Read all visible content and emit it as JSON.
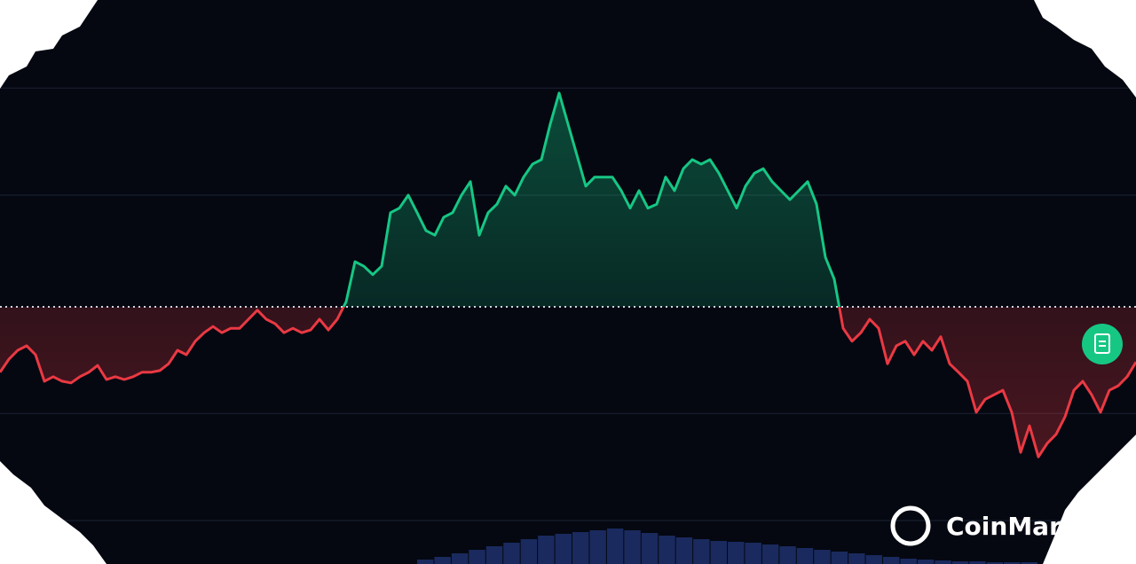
{
  "chart_data": {
    "type": "baseline-line",
    "baseline": 45.6,
    "ylim": [
      0,
      100
    ],
    "grid_lines": [
      84.4,
      65.4,
      26.7,
      7.7
    ],
    "up_color": "#16c784",
    "down_color": "#ea3943",
    "values": [
      34.0,
      36.3,
      37.9,
      38.7,
      37.1,
      32.4,
      33.2,
      32.4,
      32.1,
      33.2,
      34.0,
      35.2,
      32.7,
      33.2,
      32.7,
      33.2,
      34.0,
      34.0,
      34.3,
      35.5,
      37.9,
      37.1,
      39.5,
      41.0,
      42.1,
      41.0,
      41.8,
      41.8,
      43.4,
      45.0,
      43.4,
      42.6,
      41.0,
      41.8,
      41.0,
      41.5,
      43.4,
      41.5,
      43.4,
      46.5,
      53.6,
      52.8,
      51.3,
      52.8,
      62.3,
      63.1,
      65.4,
      62.3,
      59.1,
      58.3,
      61.5,
      62.3,
      65.4,
      67.8,
      58.3,
      62.3,
      63.8,
      67.0,
      65.4,
      68.6,
      70.9,
      71.7,
      78.0,
      83.5,
      78.0,
      72.5,
      67.0,
      68.6,
      68.6,
      68.6,
      66.2,
      63.1,
      66.2,
      63.1,
      63.8,
      68.6,
      66.2,
      70.1,
      71.7,
      70.9,
      71.7,
      69.3,
      66.2,
      63.1,
      67.0,
      69.3,
      70.1,
      67.8,
      66.2,
      64.6,
      66.2,
      67.8,
      63.8,
      54.4,
      50.5,
      41.8,
      39.5,
      41.0,
      43.4,
      41.8,
      35.5,
      38.7,
      39.5,
      37.1,
      39.5,
      37.9,
      40.3,
      35.5,
      34.0,
      32.4,
      26.9,
      29.2,
      30.0,
      30.8,
      26.9,
      19.8,
      24.5,
      19.0,
      21.4,
      23.0,
      26.1,
      30.8,
      32.4,
      30.0,
      26.9,
      30.8,
      31.6,
      33.2,
      35.8
    ],
    "volume": {
      "color": "#1a2a5e",
      "ylim": [
        0,
        100
      ],
      "values": [
        5,
        8,
        12,
        16,
        20,
        24,
        28,
        32,
        34,
        36,
        38,
        40,
        38,
        35,
        32,
        30,
        28,
        26,
        25,
        24,
        22,
        20,
        18,
        16,
        14,
        12,
        10,
        8,
        6,
        5,
        4,
        3,
        3,
        2,
        2,
        2
      ]
    }
  },
  "logo": {
    "text": "CoinMarketCap"
  }
}
